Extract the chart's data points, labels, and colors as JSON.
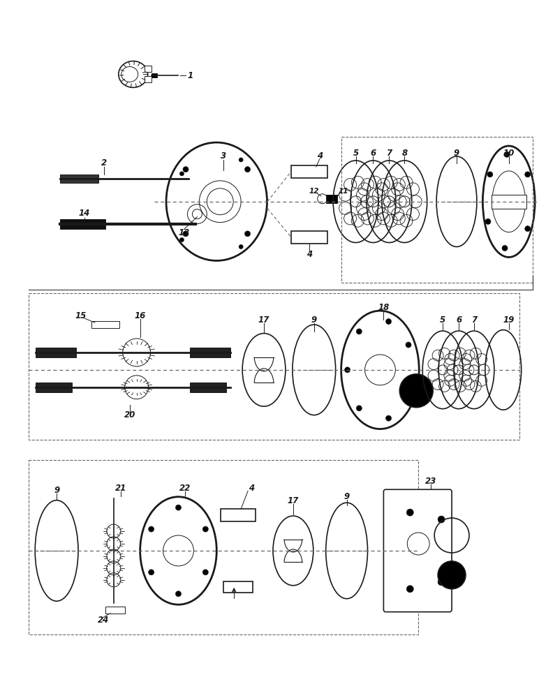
{
  "bg_color": "#ffffff",
  "line_color": "#1a1a1a",
  "dash_color": "#666666",
  "figsize": [
    7.72,
    10.0
  ],
  "dpi": 100,
  "lw_thin": 0.7,
  "lw_med": 1.2,
  "lw_thick": 2.0,
  "lw_vthick": 3.0,
  "label_fontsize": 8.5
}
